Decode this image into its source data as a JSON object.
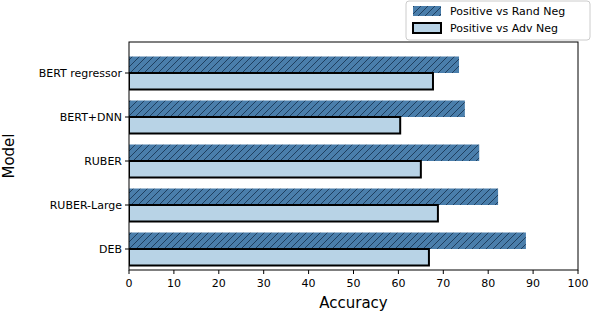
{
  "chart_data": {
    "type": "bar",
    "orientation": "horizontal",
    "x_label": "Accuracy",
    "y_label": "Model",
    "categories": [
      "BERT regressor",
      "BERT+DNN",
      "RUBER",
      "RUBER-Large",
      "DEB"
    ],
    "series": [
      {
        "name": "Positive vs Rand Neg",
        "color": "#4a7eab",
        "values": [
          73.5,
          74.8,
          78.0,
          82.2,
          88.4
        ]
      },
      {
        "name": "Positive vs Adv Neg",
        "color": "#b8d3e6",
        "values": [
          67.7,
          60.4,
          65.0,
          68.8,
          66.8
        ]
      }
    ],
    "xlim": [
      0,
      100
    ],
    "xticks": [
      0,
      10,
      20,
      30,
      40,
      50,
      60,
      70,
      80,
      90,
      100
    ],
    "legend": "upper right",
    "grid": false
  }
}
